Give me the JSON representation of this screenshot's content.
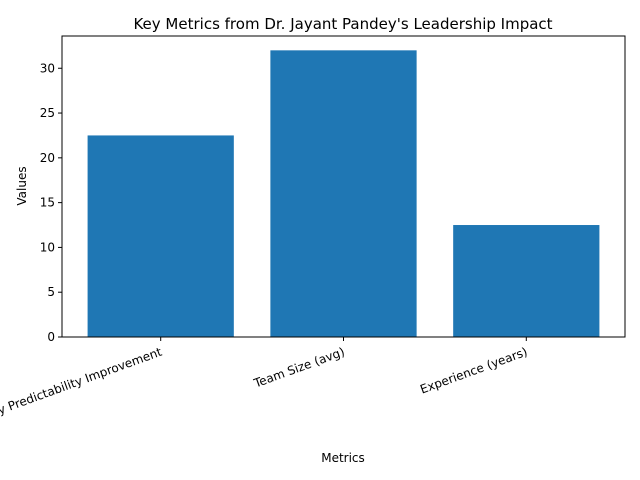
{
  "chart_data": {
    "type": "bar",
    "title": "Key Metrics from Dr. Jayant Pandey's Leadership Impact",
    "xlabel": "Metrics",
    "ylabel": "Values",
    "categories": [
      "Delivery Predictability Improvement",
      "Team Size (avg)",
      "Experience (years)"
    ],
    "values": [
      22.5,
      32,
      12.5
    ],
    "ylim": [
      0,
      33.6
    ],
    "yticks": [
      0,
      5,
      10,
      15,
      20,
      25,
      30
    ],
    "bar_color": "#1f77b4",
    "grid": false,
    "legend": "none"
  }
}
